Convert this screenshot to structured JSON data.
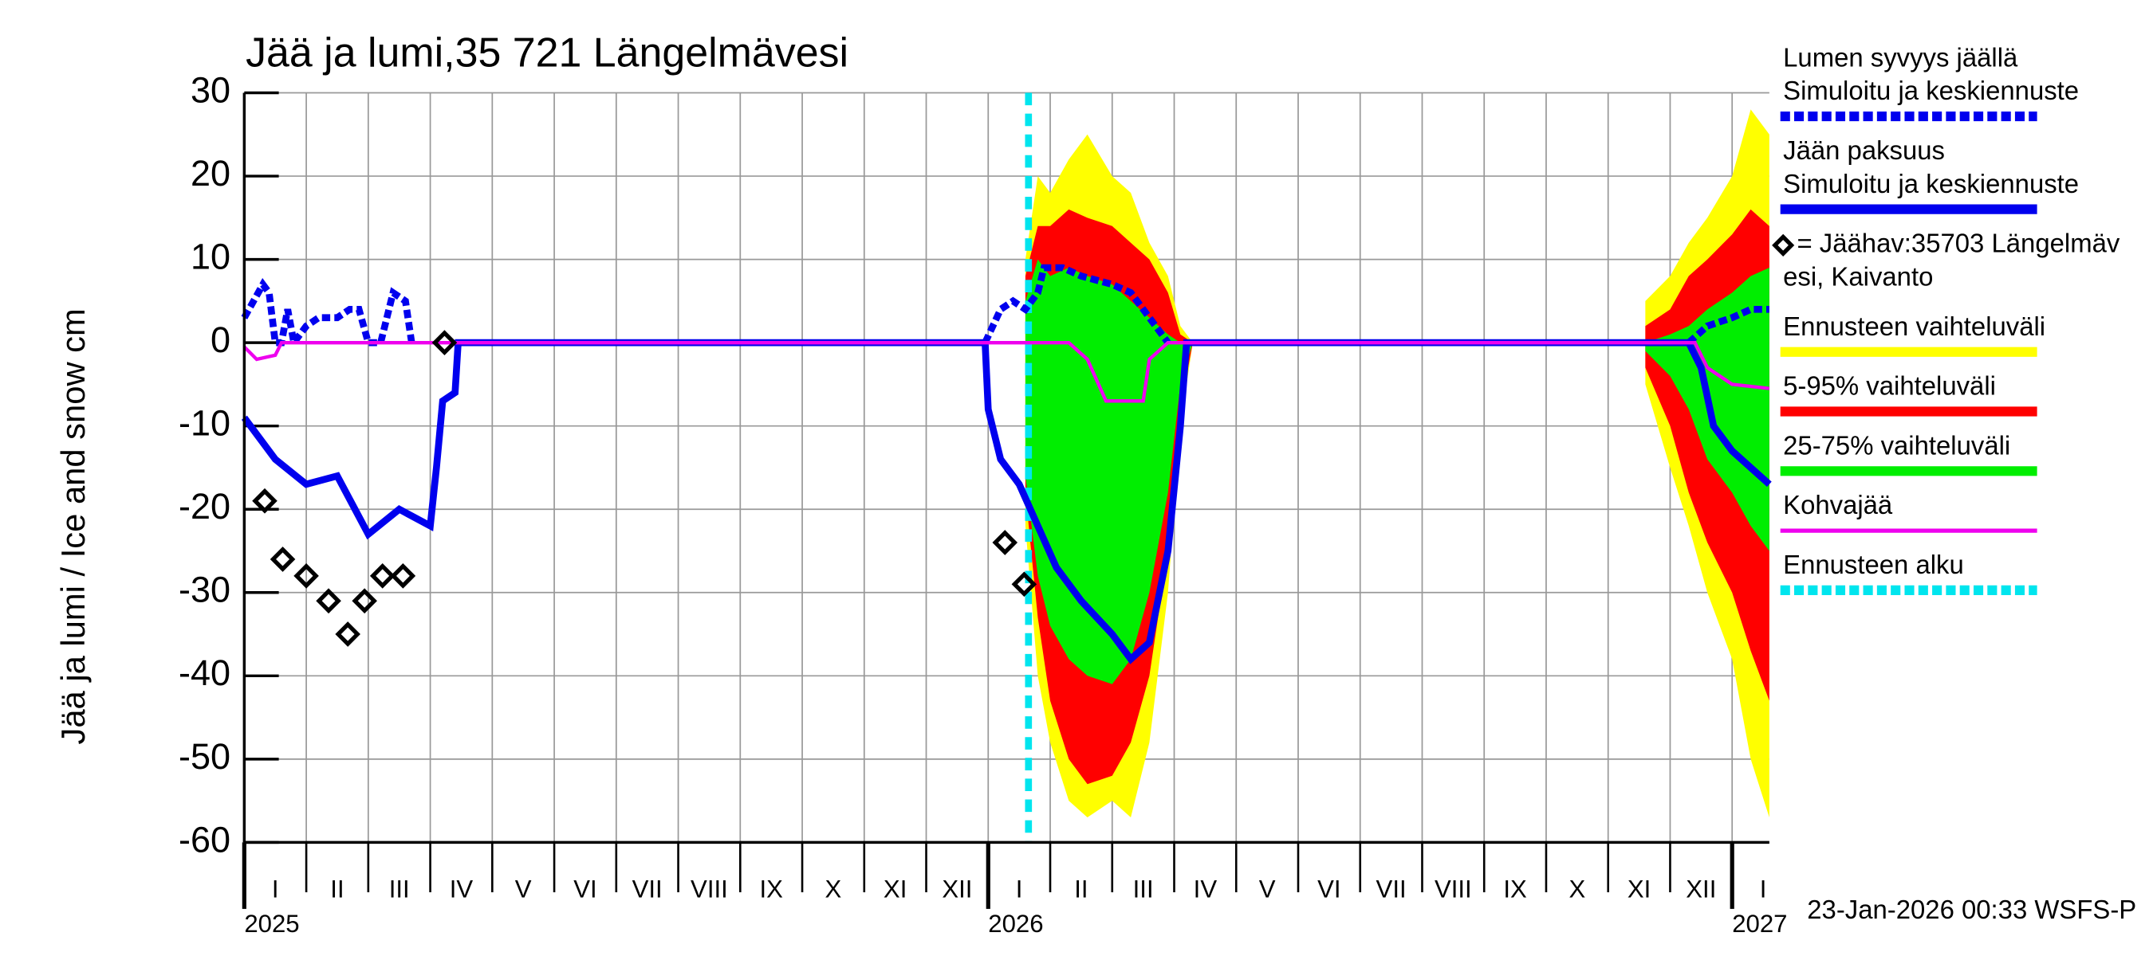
{
  "chart_data": {
    "type": "line",
    "title": "Jää ja lumi,35 721 Längelmävesi",
    "y_label": "Jää ja lumi / Ice and snow    cm",
    "footer": "23-Jan-2026 00:33 WSFS-P",
    "ylim": [
      -60,
      30
    ],
    "yticks": [
      30,
      20,
      10,
      0,
      -10,
      -20,
      -30,
      -40,
      -50,
      -60
    ],
    "xlim": [
      0,
      24.6
    ],
    "xticks": [
      {
        "value": 0.5,
        "label": "I"
      },
      {
        "value": 1.5,
        "label": "II"
      },
      {
        "value": 2.5,
        "label": "III"
      },
      {
        "value": 3.5,
        "label": "IV"
      },
      {
        "value": 4.5,
        "label": "V"
      },
      {
        "value": 5.5,
        "label": "VI"
      },
      {
        "value": 6.5,
        "label": "VII"
      },
      {
        "value": 7.5,
        "label": "VIII"
      },
      {
        "value": 8.5,
        "label": "IX"
      },
      {
        "value": 9.5,
        "label": "X"
      },
      {
        "value": 10.5,
        "label": "XI"
      },
      {
        "value": 11.5,
        "label": "XII"
      },
      {
        "value": 12.5,
        "label": "I"
      },
      {
        "value": 13.5,
        "label": "II"
      },
      {
        "value": 14.5,
        "label": "III"
      },
      {
        "value": 15.5,
        "label": "IV"
      },
      {
        "value": 16.5,
        "label": "V"
      },
      {
        "value": 17.5,
        "label": "VI"
      },
      {
        "value": 18.5,
        "label": "VII"
      },
      {
        "value": 19.5,
        "label": "VIII"
      },
      {
        "value": 20.5,
        "label": "IX"
      },
      {
        "value": 21.5,
        "label": "X"
      },
      {
        "value": 22.5,
        "label": "XI"
      },
      {
        "value": 23.5,
        "label": "XII"
      },
      {
        "value": 24.5,
        "label": "I"
      }
    ],
    "year_ticks": [
      {
        "value": 0,
        "label": "2025"
      },
      {
        "value": 12,
        "label": "2026"
      },
      {
        "value": 24,
        "label": "2027"
      }
    ],
    "grid": true,
    "series": [
      {
        "name": [
          "Lumen syvyys jäällä",
          "Simuloitu ja keskiennuste"
        ],
        "kind": "line",
        "dash": true,
        "color": "#0000ee",
        "x": [
          0,
          0.15,
          0.3,
          0.4,
          0.5,
          0.6,
          0.7,
          0.8,
          1.0,
          1.2,
          1.5,
          1.7,
          1.85,
          2.0,
          2.2,
          2.4,
          2.6,
          2.7,
          3.5,
          11.95,
          12.2,
          12.4,
          12.6,
          12.8,
          12.9,
          13.2,
          13.5,
          14.0,
          14.3,
          14.6,
          14.9,
          15.2,
          23.3,
          23.6,
          24.0,
          24.3,
          24.6
        ],
        "values": [
          3,
          5,
          7,
          6,
          0,
          0,
          4,
          0,
          2,
          3,
          3,
          4,
          4,
          0,
          0,
          6,
          5,
          0,
          null,
          0,
          4,
          5,
          4,
          6,
          9,
          9,
          8,
          7,
          6,
          3,
          0,
          null,
          0,
          2,
          3,
          4,
          4
        ]
      },
      {
        "name": [
          "Jään paksuus",
          "Simuloitu ja keskiennuste"
        ],
        "kind": "line",
        "dash": false,
        "color": "#0000ee",
        "x": [
          0,
          0.5,
          1.0,
          1.5,
          2.0,
          2.5,
          3.0,
          3.1,
          3.2,
          3.4,
          3.45,
          11.95,
          12.0,
          12.2,
          12.5,
          12.8,
          13.1,
          13.5,
          14.0,
          14.3,
          14.6,
          14.9,
          15.1,
          15.2,
          23.3,
          23.5,
          23.7,
          24.0,
          24.3,
          24.6
        ],
        "values": [
          -9,
          -14,
          -17,
          -16,
          -23,
          -20,
          -22,
          -15,
          -7,
          -6,
          0,
          0,
          -8,
          -14,
          -17,
          -22,
          -27,
          -31,
          -35,
          -38,
          -36,
          -25,
          -10,
          0,
          0,
          -3,
          -10,
          -13,
          -15,
          -17
        ]
      },
      {
        "name": [
          "= Jäähav:35703 Längelmäv",
          "esi, Kaivanto"
        ],
        "kind": "points",
        "color": "#000000",
        "x": [
          0.33,
          0.62,
          1.0,
          1.36,
          1.67,
          1.94,
          2.23,
          2.56,
          3.23,
          12.27,
          12.58
        ],
        "values": [
          -19,
          -26,
          -28,
          -31,
          -35,
          -31,
          -28,
          -28,
          0,
          -24,
          -29
        ]
      },
      {
        "name": [
          "Ennusteen vaihteluväli"
        ],
        "kind": "band",
        "color": "#ffff00",
        "x": [
          12.6,
          12.8,
          13.0,
          13.3,
          13.6,
          14.0,
          14.3,
          14.6,
          14.9,
          15.1,
          15.3,
          22.3,
          22.6,
          23.0,
          23.3,
          23.6,
          24.0,
          24.3,
          24.6
        ],
        "upper": [
          10,
          20,
          18,
          22,
          25,
          20,
          18,
          12,
          8,
          2,
          0,
          null,
          5,
          8,
          12,
          15,
          20,
          28,
          25
        ],
        "lower": [
          -22,
          -40,
          -48,
          -55,
          -57,
          -55,
          -57,
          -48,
          -30,
          -10,
          0,
          null,
          -5,
          -15,
          -22,
          -30,
          -38,
          -50,
          -57
        ]
      },
      {
        "name": [
          "5-95% vaihteluväli"
        ],
        "kind": "band",
        "color": "#ff0000",
        "x": [
          12.6,
          12.8,
          13.0,
          13.3,
          13.6,
          14.0,
          14.3,
          14.6,
          14.9,
          15.1,
          15.3,
          22.3,
          22.6,
          23.0,
          23.3,
          23.6,
          24.0,
          24.3,
          24.6
        ],
        "upper": [
          8,
          14,
          14,
          16,
          15,
          14,
          12,
          10,
          6,
          1,
          0,
          null,
          2,
          4,
          8,
          10,
          13,
          16,
          14
        ],
        "lower": [
          -18,
          -33,
          -43,
          -50,
          -53,
          -52,
          -48,
          -40,
          -25,
          -8,
          0,
          null,
          -3,
          -10,
          -18,
          -24,
          -30,
          -37,
          -43
        ]
      },
      {
        "name": [
          "25-75% vaihteluväli"
        ],
        "kind": "band",
        "color": "#00ee00",
        "x": [
          12.6,
          12.8,
          13.0,
          13.3,
          13.6,
          14.0,
          14.3,
          14.6,
          14.9,
          15.1,
          15.3,
          22.3,
          22.6,
          23.0,
          23.3,
          23.6,
          24.0,
          24.3,
          24.6
        ],
        "upper": [
          5,
          10,
          8,
          9,
          8,
          7,
          5,
          3,
          1,
          0,
          0,
          null,
          0,
          1,
          2,
          4,
          6,
          8,
          9
        ],
        "lower": [
          -16,
          -28,
          -34,
          -38,
          -40,
          -41,
          -38,
          -30,
          -18,
          -5,
          0,
          null,
          -1,
          -4,
          -8,
          -14,
          -18,
          -22,
          -25
        ]
      },
      {
        "name": [
          "Kohvajää"
        ],
        "kind": "line",
        "dash": false,
        "color": "#ee00ee",
        "x": [
          0,
          0.2,
          0.5,
          0.6,
          13.3,
          13.6,
          13.9,
          14.5,
          14.6,
          14.9,
          23.4,
          23.6,
          24.0,
          24.6
        ],
        "values": [
          -0.5,
          -2,
          -1.5,
          0,
          0,
          -2,
          -7,
          -7,
          -2,
          0,
          0,
          -3,
          -5,
          -5.5
        ]
      },
      {
        "name": [
          "Ennusteen alku"
        ],
        "kind": "vline",
        "dash": true,
        "color": "#00e5ee",
        "x": 12.65
      }
    ]
  }
}
